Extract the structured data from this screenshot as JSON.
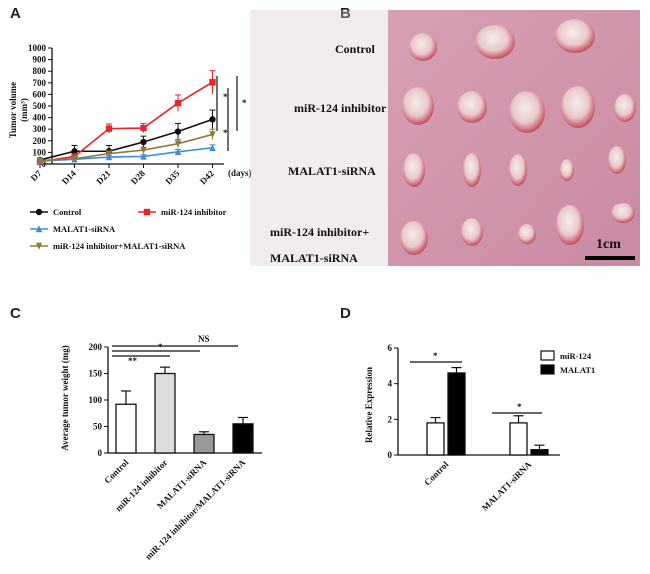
{
  "panels": {
    "a": "A",
    "b": "B",
    "c": "C",
    "d": "D"
  },
  "chart_data": [
    {
      "panel": "A",
      "type": "line",
      "ylabel_line1": "Tumor volume",
      "ylabel_line2": "(mm³)",
      "xunit": "(days)",
      "categories": [
        "D7",
        "D14",
        "D21",
        "D28",
        "D35",
        "D42"
      ],
      "yticks": [
        0,
        100,
        200,
        300,
        400,
        500,
        600,
        700,
        800,
        900,
        1000
      ],
      "ylim": [
        0,
        1000
      ],
      "series": [
        {
          "name": "Control",
          "color": "#111111",
          "marker": "circle",
          "values": [
            35,
            110,
            110,
            190,
            280,
            385
          ],
          "errors": [
            10,
            50,
            50,
            50,
            70,
            80
          ]
        },
        {
          "name": "miR-124 inhibitor",
          "color": "#e8242b",
          "marker": "square",
          "values": [
            20,
            65,
            305,
            310,
            525,
            705
          ],
          "errors": [
            8,
            20,
            40,
            40,
            70,
            100
          ]
        },
        {
          "name": "MALAT1-siRNA",
          "color": "#3b8fd9",
          "marker": "triangle",
          "values": [
            25,
            40,
            60,
            65,
            105,
            140
          ],
          "errors": [
            8,
            10,
            15,
            15,
            20,
            25
          ]
        },
        {
          "name": "miR-124 inhibitor+MALAT1-siRNA",
          "color": "#8c7a3a",
          "marker": "triangle-down",
          "values": [
            30,
            45,
            90,
            120,
            175,
            255
          ],
          "errors": [
            8,
            12,
            20,
            25,
            35,
            45
          ]
        }
      ],
      "annotations": [
        "*",
        "*",
        "*"
      ]
    },
    {
      "panel": "C",
      "type": "bar",
      "ylabel": "Average tumor weight (mg)",
      "categories": [
        "Control",
        "miR-124 inhibitor",
        "MALAT1-siRNA",
        "miR-124 inhibitor/MALAT1-siRNA"
      ],
      "values": [
        92,
        150,
        35,
        55
      ],
      "errors": [
        25,
        12,
        5,
        12
      ],
      "colors": [
        "#ffffff",
        "#dddddd",
        "#999999",
        "#000000"
      ],
      "yticks": [
        0,
        50,
        100,
        150,
        200
      ],
      "ylim": [
        0,
        200
      ],
      "annotations": [
        "**",
        "*",
        "NS"
      ]
    },
    {
      "panel": "D",
      "type": "bar",
      "ylabel": "Relative Expression",
      "categories": [
        "Control",
        "MALAT1-siRNA"
      ],
      "series": [
        {
          "name": "miR-124",
          "color": "#ffffff",
          "values": [
            1.8,
            1.8
          ],
          "errors": [
            0.3,
            0.4
          ]
        },
        {
          "name": "MALAT1",
          "color": "#000000",
          "values": [
            4.6,
            0.3
          ],
          "errors": [
            0.3,
            0.25
          ]
        }
      ],
      "yticks": [
        0,
        2,
        4,
        6
      ],
      "ylim": [
        0,
        6
      ],
      "annotations": [
        "*",
        "*"
      ]
    }
  ],
  "photo": {
    "rows": [
      "Control",
      "miR-124 inhibitor",
      "MALAT1-siRNA",
      "miR-124 inhibitor+",
      "MALAT1-siRNA"
    ],
    "scale_label": "1cm"
  }
}
